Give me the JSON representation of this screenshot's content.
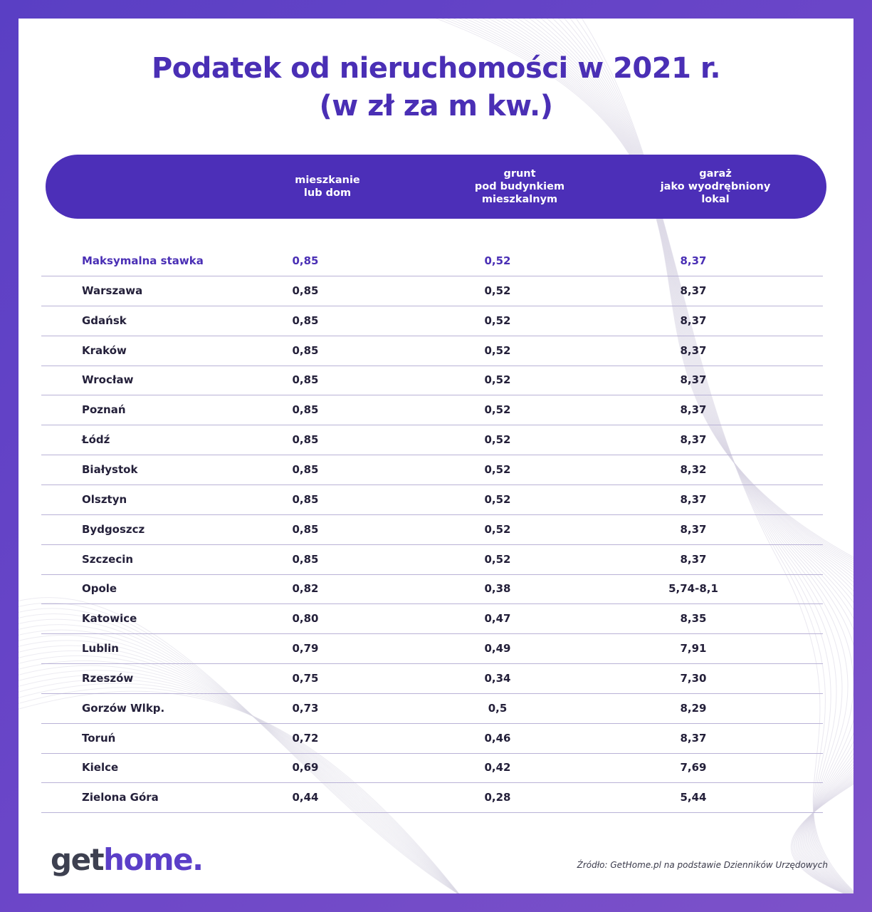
{
  "title_line1": "Podatek od nieruchomości w 2021 r.",
  "title_line2": "(w zł za m kw.)",
  "columns": [
    "mieszkanie\nlub dom",
    "grunt\npod budynkiem\nmieszkalnym",
    "garaż\njako wyodrębniony\nlokal"
  ],
  "chart_data": {
    "type": "table",
    "title": "Podatek od nieruchomości w 2021 r. (w zł za m kw.)",
    "columns": [
      "mieszkanie lub dom",
      "grunt pod budynkiem mieszkalnym",
      "garaż jako wyodrębniony lokal"
    ],
    "rows": [
      {
        "name": "Maksymalna stawka",
        "values": [
          "0,85",
          "0,52",
          "8,37"
        ],
        "highlight": true
      },
      {
        "name": "Warszawa",
        "values": [
          "0,85",
          "0,52",
          "8,37"
        ]
      },
      {
        "name": "Gdańsk",
        "values": [
          "0,85",
          "0,52",
          "8,37"
        ]
      },
      {
        "name": "Kraków",
        "values": [
          "0,85",
          "0,52",
          "8,37"
        ]
      },
      {
        "name": "Wrocław",
        "values": [
          "0,85",
          "0,52",
          "8,37"
        ]
      },
      {
        "name": "Poznań",
        "values": [
          "0,85",
          "0,52",
          "8,37"
        ]
      },
      {
        "name": "Łódź",
        "values": [
          "0,85",
          "0,52",
          "8,37"
        ]
      },
      {
        "name": "Białystok",
        "values": [
          "0,85",
          "0,52",
          "8,32"
        ]
      },
      {
        "name": "Olsztyn",
        "values": [
          "0,85",
          "0,52",
          "8,37"
        ]
      },
      {
        "name": "Bydgoszcz",
        "values": [
          "0,85",
          "0,52",
          "8,37"
        ]
      },
      {
        "name": "Szczecin",
        "values": [
          "0,85",
          "0,52",
          "8,37"
        ]
      },
      {
        "name": "Opole",
        "values": [
          "0,82",
          "0,38",
          "5,74-8,1"
        ]
      },
      {
        "name": "Katowice",
        "values": [
          "0,80",
          "0,47",
          "8,35"
        ]
      },
      {
        "name": "Lublin",
        "values": [
          "0,79",
          "0,49",
          "7,91"
        ]
      },
      {
        "name": "Rzeszów",
        "values": [
          "0,75",
          "0,34",
          "7,30"
        ]
      },
      {
        "name": "Gorzów Wlkp.",
        "values": [
          "0,73",
          "0,5",
          "8,29"
        ]
      },
      {
        "name": "Toruń",
        "values": [
          "0,72",
          "0,46",
          "8,37"
        ]
      },
      {
        "name": "Kielce",
        "values": [
          "0,69",
          "0,42",
          "7,69"
        ]
      },
      {
        "name": "Zielona Góra",
        "values": [
          "0,44",
          "0,28",
          "5,44"
        ]
      }
    ]
  },
  "logo": {
    "get": "get",
    "home": "home",
    "dot": "."
  },
  "source": "Źródło: GetHome.pl na podstawie Dzienników Urzędowych",
  "colors": {
    "accent": "#4c2fb8",
    "frame": "#5a3fc4",
    "text": "#24203a"
  }
}
